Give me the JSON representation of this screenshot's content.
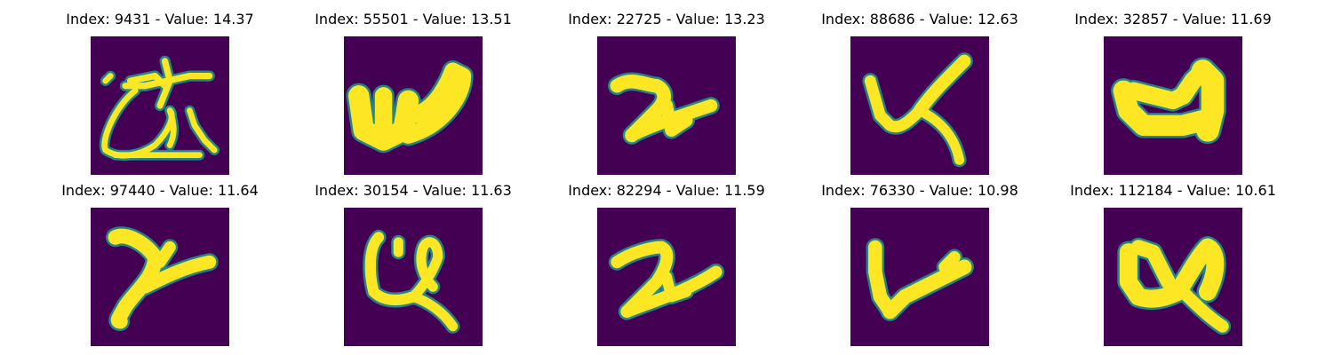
{
  "colors": {
    "background": "#440154",
    "stroke": "#fde725",
    "edge": "#21918c"
  },
  "panels": [
    {
      "title": "Index: 9431 - Value: 14.37",
      "glyph": "multi-stroke-loop-with-dot"
    },
    {
      "title": "Index: 55501 - Value: 13.51",
      "glyph": "thick-w-shape"
    },
    {
      "title": "Index: 22725 - Value: 13.23",
      "glyph": "two-like-z-shape"
    },
    {
      "title": "Index: 88686 - Value: 12.63",
      "glyph": "check-with-tail"
    },
    {
      "title": "Index: 32857 - Value: 11.69",
      "glyph": "thick-u-shape"
    },
    {
      "title": "Index: 97440 - Value: 11.64",
      "glyph": "two-like-z-shape"
    },
    {
      "title": "Index: 30154 - Value: 11.63",
      "glyph": "u-with-loop"
    },
    {
      "title": "Index: 82294 - Value: 11.59",
      "glyph": "two-like-z-shape"
    },
    {
      "title": "Index: 76330 - Value: 10.98",
      "glyph": "v-shape"
    },
    {
      "title": "Index: 112184 - Value: 10.61",
      "glyph": "u-with-tail"
    }
  ]
}
